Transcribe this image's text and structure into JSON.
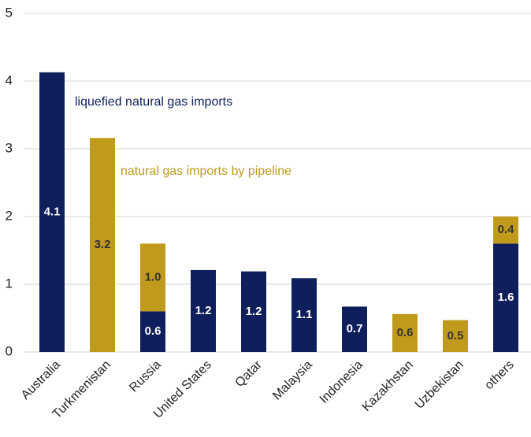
{
  "chart_data": {
    "type": "stacked_bar",
    "categories": [
      "Australia",
      "Turkmenistan",
      "Russia",
      "United States",
      "Qatar",
      "Malaysia",
      "Indonesia",
      "Kazakhstan",
      "Uzbekistan",
      "others"
    ],
    "series": [
      {
        "name": "liquefied natural gas imports",
        "color": "#0f1f5c",
        "values": [
          4.13,
          null,
          0.6,
          1.21,
          1.19,
          1.09,
          0.67,
          null,
          null,
          1.6
        ],
        "value_labels": [
          "4.1",
          null,
          "0.6",
          "1.2",
          "1.2",
          "1.1",
          "0.7",
          null,
          null,
          "1.6"
        ]
      },
      {
        "name": "natural gas imports by pipeline",
        "color": "#c09a1a",
        "values": [
          null,
          3.16,
          1.0,
          null,
          null,
          null,
          null,
          0.56,
          0.47,
          0.4
        ],
        "value_labels": [
          null,
          "3.2",
          "1.0",
          null,
          null,
          null,
          null,
          "0.6",
          "0.5",
          "0.4"
        ]
      }
    ],
    "ylim": [
      0,
      5
    ],
    "yticks": [
      0,
      1,
      2,
      3,
      4,
      5
    ],
    "grid": true
  }
}
